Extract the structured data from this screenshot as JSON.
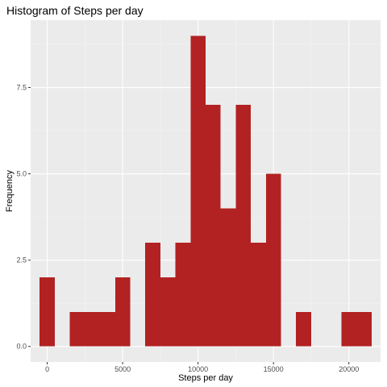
{
  "chart_data": {
    "type": "bar",
    "title": "Histogram of Steps per day",
    "xlabel": "Steps per day",
    "ylabel": "Frequency",
    "bin_width": 1000,
    "bins": [
      {
        "x0": -500,
        "x1": 500,
        "count": 2
      },
      {
        "x0": 500,
        "x1": 1500,
        "count": 0
      },
      {
        "x0": 1500,
        "x1": 2500,
        "count": 1
      },
      {
        "x0": 2500,
        "x1": 3500,
        "count": 1
      },
      {
        "x0": 3500,
        "x1": 4500,
        "count": 1
      },
      {
        "x0": 4500,
        "x1": 5500,
        "count": 2
      },
      {
        "x0": 5500,
        "x1": 6500,
        "count": 0
      },
      {
        "x0": 6500,
        "x1": 7500,
        "count": 3
      },
      {
        "x0": 7500,
        "x1": 8500,
        "count": 2
      },
      {
        "x0": 8500,
        "x1": 9500,
        "count": 3
      },
      {
        "x0": 9500,
        "x1": 10500,
        "count": 9
      },
      {
        "x0": 10500,
        "x1": 11500,
        "count": 7
      },
      {
        "x0": 11500,
        "x1": 12500,
        "count": 4
      },
      {
        "x0": 12500,
        "x1": 13500,
        "count": 7
      },
      {
        "x0": 13500,
        "x1": 14500,
        "count": 3
      },
      {
        "x0": 14500,
        "x1": 15500,
        "count": 5
      },
      {
        "x0": 15500,
        "x1": 16500,
        "count": 0
      },
      {
        "x0": 16500,
        "x1": 17500,
        "count": 1
      },
      {
        "x0": 17500,
        "x1": 18500,
        "count": 0
      },
      {
        "x0": 18500,
        "x1": 19500,
        "count": 0
      },
      {
        "x0": 19500,
        "x1": 20500,
        "count": 1
      },
      {
        "x0": 20500,
        "x1": 21500,
        "count": 1
      }
    ],
    "xlim": [
      -1100,
      22100
    ],
    "ylim": [
      -0.45,
      9.45
    ],
    "x_ticks": [
      0,
      5000,
      10000,
      15000,
      20000
    ],
    "x_tick_labels": [
      "0",
      "5000",
      "10000",
      "15000",
      "20000"
    ],
    "y_ticks": [
      0,
      2.5,
      5,
      7.5
    ],
    "y_tick_labels": [
      "0.0",
      "2.5",
      "5.0",
      "7.5"
    ],
    "grid": true,
    "legend": "none",
    "colors": {
      "bar": "#b22222",
      "panel_background": "#ebebeb",
      "grid_major": "#ffffff",
      "grid_minor": "#f5f5f5",
      "tick_label": "#4d4d4d"
    }
  }
}
